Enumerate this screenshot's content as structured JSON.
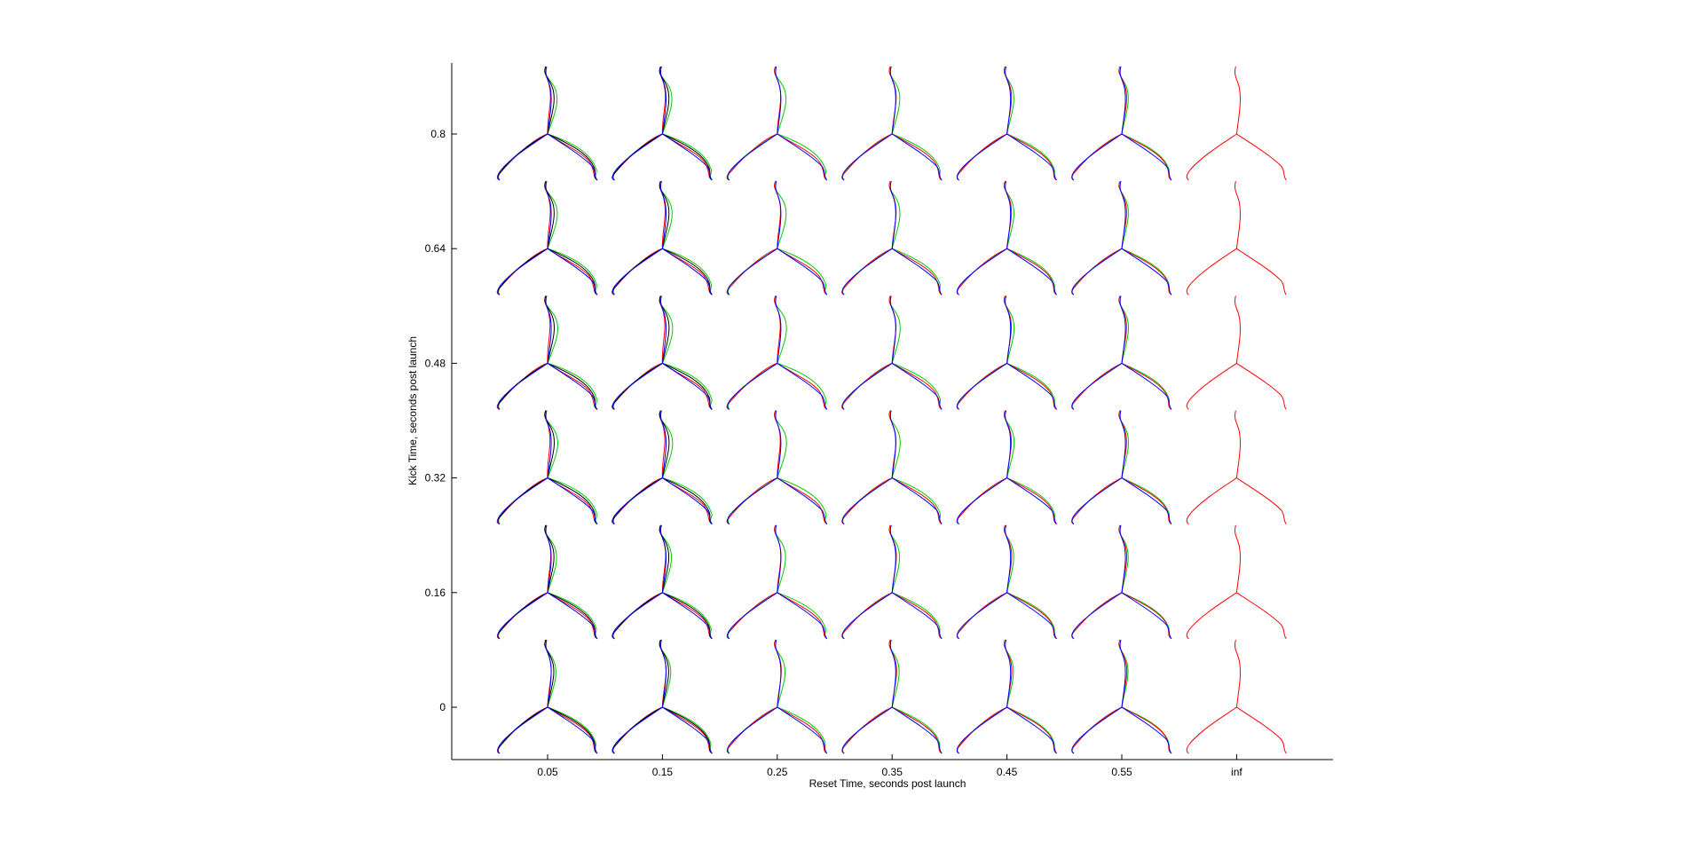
{
  "chart_data": {
    "type": "line",
    "title": "",
    "xlabel": "Reset Time, seconds post launch",
    "ylabel": "Kick Time, seconds post launch",
    "x_tick_labels": [
      "0.05",
      "0.15",
      "0.25",
      "0.35",
      "0.45",
      "0.55",
      "inf"
    ],
    "y_tick_labels": [
      "0",
      "0.16",
      "0.32",
      "0.48",
      "0.64",
      "0.8"
    ],
    "reset_times": [
      0.05,
      0.15,
      0.25,
      0.35,
      0.45,
      0.55,
      "inf"
    ],
    "kick_times": [
      0,
      0.16,
      0.32,
      0.48,
      0.64,
      0.8
    ],
    "grid": false,
    "legend": "none",
    "description_of_marks": "small-multiple grid of leg/body trajectory traces, one glyph per (reset time, kick time) cell",
    "series_colors": {
      "reference": "#ff0000",
      "trace_green": "#00cc00",
      "trace_blue": "#0000ff",
      "trace_black": "#000000"
    },
    "deviation_by_column": [
      1.0,
      1.0,
      0.8,
      0.55,
      0.35,
      0.25,
      0.0
    ],
    "deviation_by_row": [
      0.6,
      0.75,
      1.0,
      1.0,
      0.9,
      0.85
    ]
  }
}
